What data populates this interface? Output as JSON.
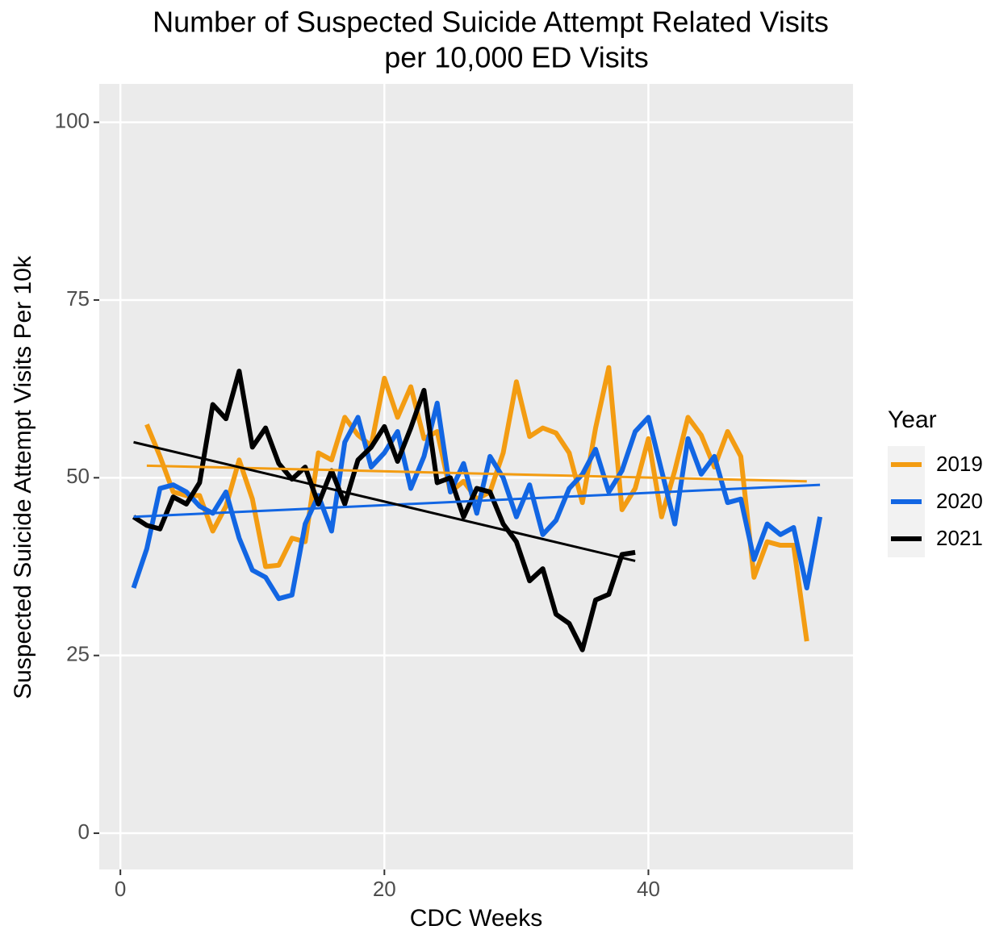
{
  "chart_data": {
    "type": "line",
    "title": [
      "Number of Suspected Suicide Attempt Related Visits",
      "per 10,000 ED Visits"
    ],
    "x_label": "CDC Weeks",
    "y_label": "Suspected Suicide Attempt Visits Per 10k",
    "legend_title": "Year",
    "xlim": [
      -1.6,
      55.5
    ],
    "ylim": [
      -5.1,
      105.4
    ],
    "xticks": [
      0,
      20,
      40
    ],
    "yticks": [
      0,
      25,
      50,
      75,
      100
    ],
    "grid": true,
    "series": [
      {
        "name": "2019",
        "color": "#f39c12",
        "x": [
          2,
          3,
          4,
          5,
          6,
          7,
          8,
          9,
          10,
          11,
          12,
          13,
          14,
          15,
          16,
          17,
          18,
          19,
          20,
          21,
          22,
          23,
          24,
          25,
          26,
          27,
          28,
          29,
          30,
          31,
          32,
          33,
          34,
          35,
          36,
          37,
          38,
          39,
          40,
          41,
          42,
          43,
          44,
          45,
          46,
          47,
          48,
          49,
          50,
          51,
          52
        ],
        "values": [
          57.5,
          53,
          48,
          47.5,
          47.5,
          42.5,
          46,
          52.5,
          47,
          37.5,
          37.7,
          41.5,
          41,
          53.5,
          52.5,
          58.5,
          56,
          54.5,
          64,
          58.5,
          62.8,
          55.5,
          56.5,
          48,
          49.5,
          47,
          48,
          53.5,
          63.5,
          55.8,
          57,
          56.3,
          53.5,
          46.5,
          57,
          65.5,
          45.5,
          48.5,
          55.5,
          44.5,
          51,
          58.5,
          56,
          51.5,
          56.5,
          53,
          36,
          41,
          40.5,
          40.5,
          27
        ],
        "trend_x": [
          2,
          52
        ],
        "trend_values": [
          51.7,
          49.5
        ]
      },
      {
        "name": "2020",
        "color": "#1266e3",
        "x": [
          1,
          2,
          3,
          4,
          5,
          6,
          7,
          8,
          9,
          10,
          11,
          12,
          13,
          14,
          15,
          16,
          17,
          18,
          19,
          20,
          21,
          22,
          23,
          24,
          25,
          26,
          27,
          28,
          29,
          30,
          31,
          32,
          33,
          34,
          35,
          36,
          37,
          38,
          39,
          40,
          41,
          42,
          43,
          44,
          45,
          46,
          47,
          48,
          49,
          50,
          51,
          52,
          53
        ],
        "values": [
          34.5,
          40,
          48.5,
          49,
          48,
          46,
          45,
          48,
          41.5,
          37,
          36,
          33,
          33.5,
          43.5,
          47.5,
          42.5,
          55,
          58.5,
          51.5,
          53.5,
          56.5,
          48.5,
          53,
          60.5,
          48,
          52,
          45,
          53,
          50,
          44.5,
          49,
          42,
          44,
          48.5,
          50.5,
          54,
          48,
          51,
          56.5,
          58.5,
          51,
          43.5,
          55.5,
          50.5,
          53,
          46.5,
          47,
          38.5,
          43.5,
          42,
          43,
          34.5,
          44.5
        ],
        "trend_x": [
          1,
          53
        ],
        "trend_values": [
          44.5,
          49
        ]
      },
      {
        "name": "2021",
        "color": "#000000",
        "x": [
          1,
          2,
          3,
          4,
          5,
          6,
          7,
          8,
          9,
          10,
          11,
          12,
          13,
          14,
          15,
          16,
          17,
          18,
          19,
          20,
          21,
          22,
          23,
          24,
          25,
          26,
          27,
          28,
          29,
          30,
          31,
          32,
          33,
          34,
          35,
          36,
          37,
          38,
          39
        ],
        "values": [
          44.5,
          43.3,
          42.8,
          47.3,
          46.3,
          49.3,
          60.3,
          58.3,
          65,
          54.3,
          57,
          52,
          49.8,
          51.5,
          46.3,
          51,
          46.3,
          52.5,
          54.3,
          57.2,
          52.3,
          57,
          62.3,
          49.3,
          50,
          44.5,
          48.5,
          48,
          43.5,
          41,
          35.5,
          37.2,
          30.8,
          29.5,
          25.8,
          32.8,
          33.6,
          39.2,
          39.5
        ],
        "trend_x": [
          1,
          39
        ],
        "trend_values": [
          55,
          38.3
        ]
      }
    ]
  }
}
